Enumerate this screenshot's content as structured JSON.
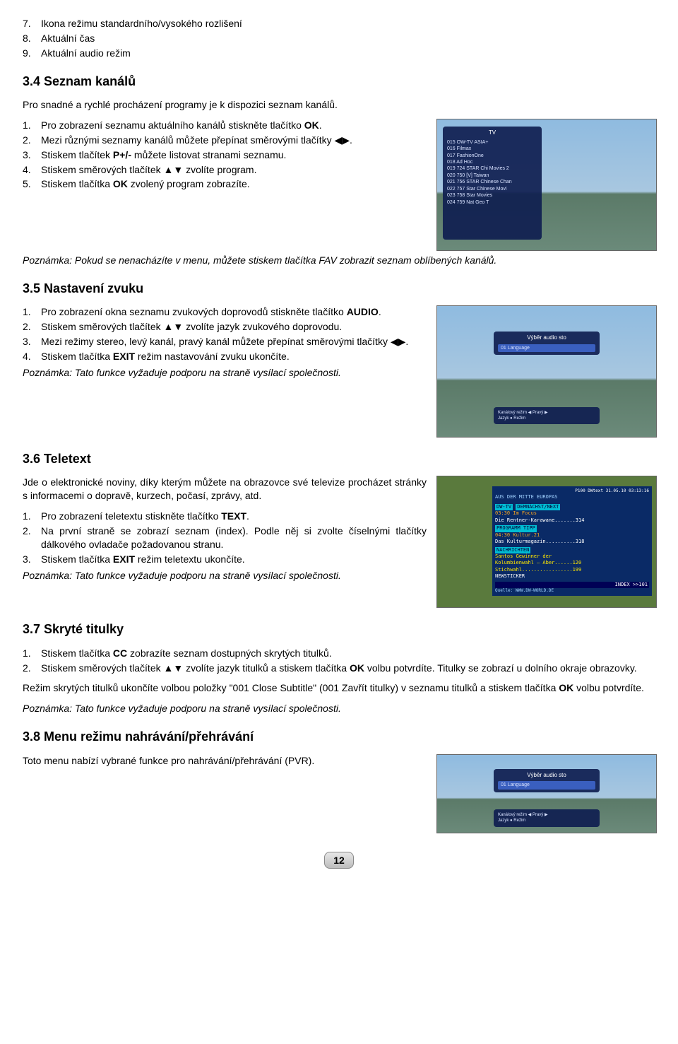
{
  "pre_items": [
    {
      "n": "7.",
      "t": "Ikona režimu standardního/vysokého rozlišení"
    },
    {
      "n": "8.",
      "t": "Aktuální čas"
    },
    {
      "n": "9.",
      "t": "Aktuální audio režim"
    }
  ],
  "s34": {
    "title": "3.4 Seznam kanálů",
    "intro": "Pro snadné a rychlé procházení programy je k dispozici seznam kanálů.",
    "items": [
      {
        "n": "1.",
        "html": "Pro zobrazení seznamu aktuálního kanálů stiskněte tlačítko <b>OK</b>."
      },
      {
        "n": "2.",
        "html": "Mezi různými seznamy kanálů můžete přepínat směrovými tlačítky <span class='arrow'>◀▶</span>."
      },
      {
        "n": "3.",
        "html": "Stiskem tlačítek <b>P+/-</b> můžete listovat stranami seznamu."
      },
      {
        "n": "4.",
        "html": "Stiskem směrových tlačítek <span class='arrow'>▲▼</span> zvolíte program."
      },
      {
        "n": "5.",
        "html": "Stiskem tlačítka <b>OK</b> zvolený program zobrazíte."
      }
    ],
    "note": "Poznámka: Pokud se nenacházíte v menu, můžete stiskem tlačítka FAV zobrazit seznam oblíbených kanálů.",
    "fig": {
      "hdr": "TV",
      "lines": [
        "015  OW-TV ASIA+",
        "016  Filmax",
        "017  FashionOne",
        "018  Ad Hoc",
        "019  724 STAR Chi Movies 2",
        "020  750 [V] Taiwan",
        "021  756 STAR Chinese Chan",
        "022  757 Star Chinese Movi",
        "023  758 Star Movies",
        "024  759 Nat Geo T"
      ]
    }
  },
  "s35": {
    "title": "3.5 Nastavení zvuku",
    "items": [
      {
        "n": "1.",
        "html": "Pro zobrazení okna seznamu zvukových doprovodů stiskněte tlačítko <b>AUDIO</b>."
      },
      {
        "n": "2.",
        "html": "Stiskem směrových tlačítek <span class='arrow'>▲▼</span> zvolíte jazyk zvukového doprovodu."
      },
      {
        "n": "3.",
        "html": "Mezi režimy stereo, levý kanál, pravý kanál můžete přepínat směrovými tlačítky <span class='arrow'>◀▶</span>."
      },
      {
        "n": "4.",
        "html": "Stiskem tlačítka <b>EXIT</b> režim nastavování zvuku ukončíte."
      }
    ],
    "note": "Poznámka: Tato funkce vyžaduje podporu na straně vysílací společnosti.",
    "fig": {
      "hdr": "Výběr audio sto",
      "line": "01   Language",
      "foot1": "Kanálový režim ◀ Pravý ▶",
      "foot2": "Jazyk           ● Režim"
    }
  },
  "s36": {
    "title": "3.6 Teletext",
    "intro": "Jde o elektronické noviny, díky kterým můžete na obrazovce své televize procházet stránky s informacemi o dopravě, kurzech, počasí, zprávy, atd.",
    "items": [
      {
        "n": "1.",
        "html": "Pro zobrazení teletextu stiskněte tlačítko <b>TEXT</b>."
      },
      {
        "n": "2.",
        "html": "Na první straně se zobrazí seznam (index). Podle něj si zvolte číselnými tlačítky dálkového ovladače požadovanou stranu."
      },
      {
        "n": "3.",
        "html": "Stiskem tlačítka <b>EXIT</b> režim teletextu ukončíte."
      }
    ],
    "note": "Poznámka: Tato funkce vyžaduje podporu na straně vysílací společnosti.",
    "fig": {
      "top": "P100 DWtext 31.05.10 03:13:16",
      "l1": "AUS DER MITTE EUROPAS",
      "l2": "DW-TV",
      "sec1": "DEMNÄCHST/NEXT",
      "l3": "03:30  Im Focus",
      "l4": "Die Rentner-Karawane.......314",
      "sec2": "PROGRAMM TIPP",
      "l5": "04:30 Kultur.21",
      "l6": "Das Kulturmagazin..........318",
      "sec3": "NACHRICHTEN",
      "l7": "Santos Gewinner der",
      "l8": "Kolumbienwahl — Aber......120",
      "l9": "Stichwahl.................199",
      "l10": "NEWSTICKER",
      "foot": "INDEX >>101",
      "src": "Quelle: WWW.DW-WORLD.DE"
    }
  },
  "s37": {
    "title": "3.7 Skryté titulky",
    "items": [
      {
        "n": "1.",
        "html": "Stiskem tlačítka <b>CC</b> zobrazíte seznam dostupných skrytých titulků."
      },
      {
        "n": "2.",
        "html": "Stiskem směrových tlačítek <span class='arrow'>▲▼</span> zvolíte jazyk titulků a stiskem tlačítka <b>OK</b> volbu potvrdíte. Titulky se zobrazí u dolního okraje obrazovky."
      }
    ],
    "post": "Režim skrytých titulků ukončíte volbou položky \"001 Close Subtitle\" (001 Zavřít titulky) v seznamu titulků a stiskem tlačítka <b>OK</b> volbu potvrdíte.",
    "note": "Poznámka: Tato funkce vyžaduje podporu na straně vysílací společnosti."
  },
  "s38": {
    "title": "3.8 Menu režimu nahrávání/přehrávání",
    "intro": "Toto menu nabízí vybrané funkce pro nahrávání/přehrávání (PVR).",
    "fig": {
      "hdr": "Výběr audio sto",
      "line": "01   Language",
      "foot1": "Kanálový režim ◀ Pravý ▶",
      "foot2": "Jazyk           ● Režim"
    }
  },
  "page": "12"
}
